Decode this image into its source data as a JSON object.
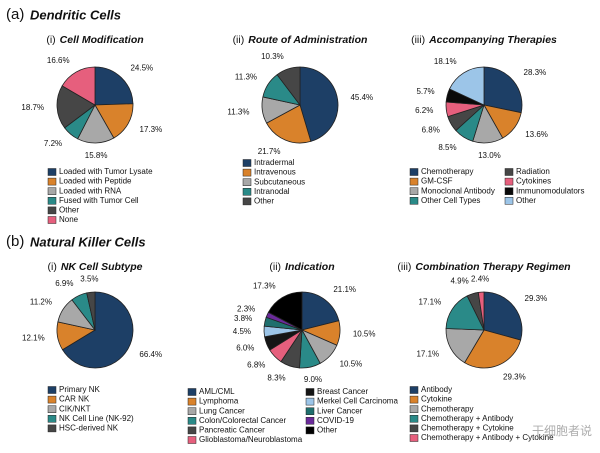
{
  "sections": [
    {
      "label": "(a)",
      "title": "Dendritic Cells"
    },
    {
      "label": "(b)",
      "title": "Natural Killer Cells"
    }
  ],
  "watermark": "干细胞者说",
  "chart_data": [
    {
      "type": "pie",
      "panel": "(i)",
      "title": "Cell Modification",
      "categories": [
        "Loaded with Tumor Lysate",
        "Loaded with Peptide",
        "Loaded with RNA",
        "Fused with Tumor Cell",
        "Other",
        "None"
      ],
      "values": [
        24.5,
        17.3,
        15.8,
        7.2,
        18.7,
        16.6
      ],
      "value_labels": [
        "24.5%",
        "17.3%",
        "15.8%",
        "7.2%",
        "18.7%",
        "16.6%"
      ],
      "colors": [
        "#1d3f66",
        "#d9822b",
        "#a8a8a8",
        "#2a8a88",
        "#464646",
        "#e65f7d"
      ]
    },
    {
      "type": "pie",
      "panel": "(ii)",
      "title": "Route of Administration",
      "categories": [
        "Intradermal",
        "Intravenous",
        "Subcutaneous",
        "Intranodal",
        "Other"
      ],
      "values": [
        45.4,
        21.7,
        11.3,
        11.3,
        10.3
      ],
      "value_labels": [
        "45.4%",
        "21.7%",
        "11.3%",
        "11.3%",
        "10.3%"
      ],
      "colors": [
        "#1d3f66",
        "#d9822b",
        "#a8a8a8",
        "#2a8a88",
        "#464646"
      ]
    },
    {
      "type": "pie",
      "panel": "(iii)",
      "title": "Accompanying Therapies",
      "categories": [
        "Chemotherapy",
        "GM-CSF",
        "Monoclonal Antibody",
        "Other Cell Types",
        "Radiation",
        "Cytokines",
        "Immunomodulators",
        "Other"
      ],
      "values": [
        28.3,
        13.6,
        13.0,
        8.5,
        6.8,
        6.2,
        5.7,
        18.1
      ],
      "value_labels": [
        "28.3%",
        "13.6%",
        "13.0%",
        "8.5%",
        "6.8%",
        "6.2%",
        "5.7%",
        "18.1%"
      ],
      "colors": [
        "#1d3f66",
        "#d9822b",
        "#a8a8a8",
        "#2a8a88",
        "#464646",
        "#e65f7d",
        "#0a0a0a",
        "#9cc5e8"
      ]
    },
    {
      "type": "pie",
      "panel": "(i)",
      "title": "NK Cell Subtype",
      "categories": [
        "Primary NK",
        "CAR NK",
        "CIK/NKT",
        "NK Cell Line (NK-92)",
        "HSC-derived NK"
      ],
      "values": [
        66.4,
        12.1,
        11.2,
        6.9,
        3.5
      ],
      "value_labels": [
        "66.4%",
        "12.1%",
        "11.2%",
        "6.9%",
        "3.5%"
      ],
      "colors": [
        "#1d3f66",
        "#d9822b",
        "#a8a8a8",
        "#2a8a88",
        "#464646"
      ]
    },
    {
      "type": "pie",
      "panel": "(ii)",
      "title": "Indication",
      "categories": [
        "AML/CML",
        "Lymphoma",
        "Lung Cancer",
        "Colon/Colorectal Cancer",
        "Pancreatic Cancer",
        "Glioblastoma/Neuroblastoma",
        "Breast Cancer",
        "Merkel Cell Carcinoma",
        "Liver Cancer",
        "COVID-19",
        "Other"
      ],
      "values": [
        21.1,
        10.5,
        10.5,
        9.0,
        8.3,
        6.8,
        6.0,
        4.5,
        3.8,
        2.3,
        17.3
      ],
      "value_labels": [
        "21.1%",
        "10.5%",
        "10.5%",
        "9.0%",
        "8.3%",
        "6.8%",
        "6.0%",
        "4.5%",
        "3.8%",
        "2.3%",
        "17.3%"
      ],
      "colors": [
        "#1d3f66",
        "#d9822b",
        "#a8a8a8",
        "#2a8a88",
        "#464646",
        "#e65f7d",
        "#151515",
        "#9cc5e8",
        "#1f6f6e",
        "#6a2a9a",
        "#000000"
      ]
    },
    {
      "type": "pie",
      "panel": "(iii)",
      "title": "Combination Therapy Regimen",
      "categories": [
        "Antibody",
        "Cytokine",
        "Chemotherapy",
        "Chemotherapy + Antibody",
        "Chemotherapy + Cytokine",
        "Chemotherapy + Antibody + Cytokine"
      ],
      "values": [
        29.3,
        29.3,
        17.1,
        17.1,
        4.9,
        2.4
      ],
      "value_labels": [
        "29.3%",
        "29.3%",
        "17.1%",
        "17.1%",
        "4.9%",
        "2.4%"
      ],
      "colors": [
        "#1d3f66",
        "#d9822b",
        "#a8a8a8",
        "#2a8a88",
        "#464646",
        "#e65f7d"
      ]
    }
  ]
}
